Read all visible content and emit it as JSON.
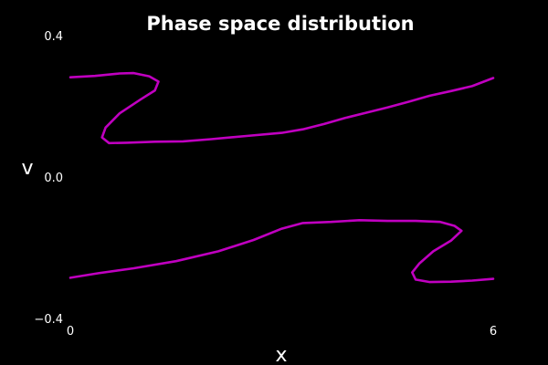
{
  "chart_data": {
    "type": "line",
    "title": "Phase space distribution",
    "xlabel": "x",
    "ylabel": "v",
    "xlim": [
      0,
      6
    ],
    "ylim": [
      -0.4,
      0.4
    ],
    "x_ticks": [
      "0",
      "6"
    ],
    "y_ticks": [
      "0.4",
      "0.0",
      "−0.4"
    ],
    "x_tick_values": [
      0,
      6
    ],
    "y_tick_values": [
      0.4,
      0.0,
      -0.4
    ],
    "grid": false,
    "legend": "none",
    "line_color": "#c000c0",
    "background": "#000000",
    "series": [
      {
        "points": [
          [
            0.0,
            0.282
          ],
          [
            0.35,
            0.286
          ],
          [
            0.7,
            0.293
          ],
          [
            0.9,
            0.294
          ],
          [
            1.12,
            0.285
          ],
          [
            1.25,
            0.27
          ],
          [
            1.2,
            0.245
          ],
          [
            1.0,
            0.22
          ],
          [
            0.7,
            0.18
          ],
          [
            0.5,
            0.14
          ],
          [
            0.45,
            0.112
          ],
          [
            0.55,
            0.096
          ],
          [
            0.8,
            0.097
          ],
          [
            1.2,
            0.1
          ],
          [
            1.6,
            0.101
          ],
          [
            2.0,
            0.107
          ],
          [
            2.5,
            0.116
          ],
          [
            3.0,
            0.125
          ],
          [
            3.3,
            0.135
          ],
          [
            3.6,
            0.15
          ],
          [
            3.9,
            0.167
          ],
          [
            4.2,
            0.182
          ],
          [
            4.5,
            0.197
          ],
          [
            4.8,
            0.213
          ],
          [
            5.1,
            0.23
          ],
          [
            5.4,
            0.243
          ],
          [
            5.7,
            0.257
          ],
          [
            6.0,
            0.28
          ]
        ]
      },
      {
        "points": [
          [
            0.0,
            -0.285
          ],
          [
            0.4,
            -0.272
          ],
          [
            0.9,
            -0.258
          ],
          [
            1.5,
            -0.238
          ],
          [
            2.1,
            -0.21
          ],
          [
            2.6,
            -0.178
          ],
          [
            3.0,
            -0.146
          ],
          [
            3.3,
            -0.13
          ],
          [
            3.7,
            -0.127
          ],
          [
            4.1,
            -0.122
          ],
          [
            4.5,
            -0.124
          ],
          [
            4.9,
            -0.124
          ],
          [
            5.25,
            -0.127
          ],
          [
            5.45,
            -0.138
          ],
          [
            5.55,
            -0.152
          ],
          [
            5.4,
            -0.18
          ],
          [
            5.15,
            -0.21
          ],
          [
            4.95,
            -0.245
          ],
          [
            4.85,
            -0.27
          ],
          [
            4.9,
            -0.29
          ],
          [
            5.1,
            -0.297
          ],
          [
            5.4,
            -0.296
          ],
          [
            5.7,
            -0.293
          ],
          [
            6.0,
            -0.288
          ]
        ]
      }
    ]
  }
}
